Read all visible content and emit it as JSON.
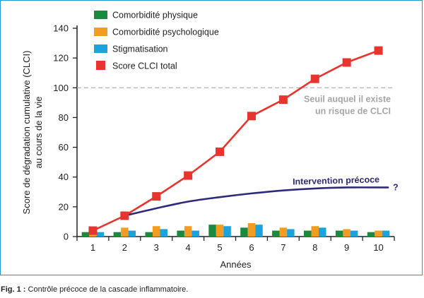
{
  "caption": {
    "label": "Fig. 1 :",
    "text": "Contrôle précoce de la cascade inflammatoire."
  },
  "chart_data": {
    "type": "bar",
    "xlabel": "Années",
    "ylabel_lines": [
      "Score de dégradation cumulative (CLCI)",
      "au cours de la vie"
    ],
    "categories": [
      "1",
      "2",
      "3",
      "4",
      "5",
      "6",
      "7",
      "8",
      "9",
      "10"
    ],
    "ylim": [
      0,
      140
    ],
    "yticks": [
      0,
      20,
      40,
      60,
      80,
      100,
      120,
      140
    ],
    "grid": false,
    "legend_position": "top-left",
    "series": [
      {
        "name": "Comorbidité physique",
        "kind": "bar",
        "color": "#1a8a3c",
        "values": [
          3,
          3,
          3,
          4,
          8,
          6,
          4,
          4,
          4,
          3
        ]
      },
      {
        "name": "Comorbidité psychologique",
        "kind": "bar",
        "color": "#f39c1f",
        "values": [
          3,
          6,
          7,
          7,
          8,
          9,
          6,
          7,
          5,
          4
        ]
      },
      {
        "name": "Stigmatisation",
        "kind": "bar",
        "color": "#1ba3de",
        "values": [
          3,
          4,
          5,
          4,
          7,
          8,
          5,
          6,
          4,
          4
        ]
      },
      {
        "name": "Score CLCI total",
        "kind": "line-marker",
        "color": "#e8342e",
        "values": [
          4,
          14,
          27,
          41,
          57,
          81,
          92,
          106,
          117,
          125
        ]
      }
    ],
    "threshold": {
      "value": 100,
      "color": "#b3b3b3",
      "label_lines": [
        "Seuil auquel il existe",
        "un risque de CLCI"
      ]
    },
    "intervention": {
      "label": "Intervention précoce",
      "marker": "?",
      "color": "#2e2a7b",
      "x": [
        2,
        3,
        4,
        5,
        6,
        7,
        8,
        9,
        10.3
      ],
      "y": [
        14,
        19,
        23.5,
        26.5,
        29,
        31,
        32.3,
        33,
        33
      ]
    }
  }
}
